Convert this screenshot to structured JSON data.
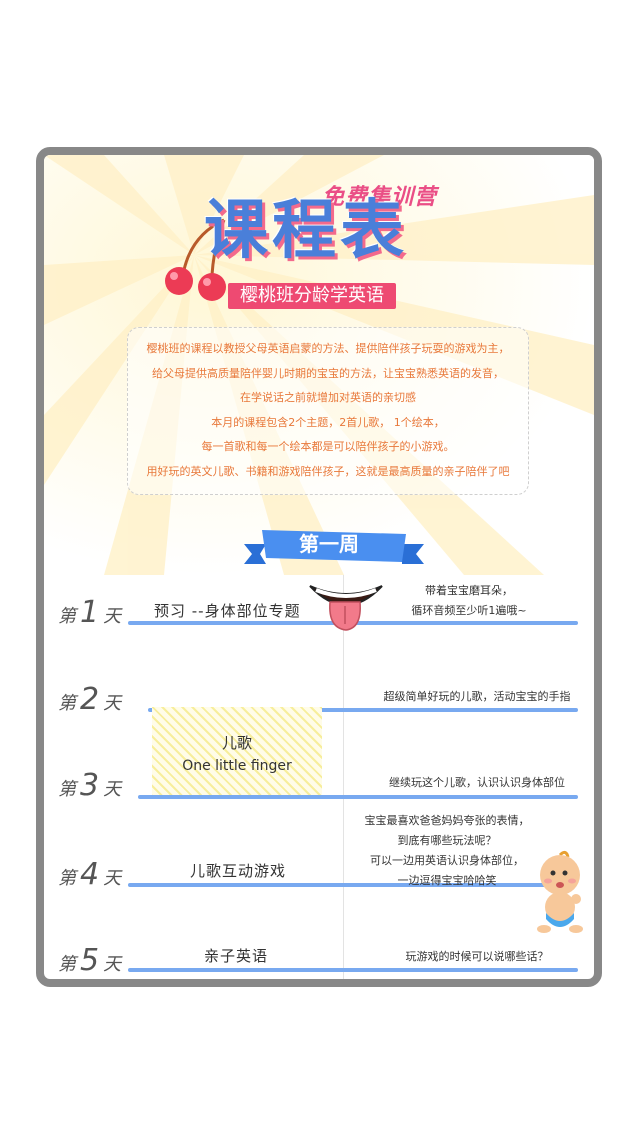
{
  "header": {
    "subtitle": "免费集训营",
    "title": "课程表",
    "ribbon": "樱桃班分龄学英语"
  },
  "intro": {
    "lines": [
      "樱桃班的课程以教授父母英语启蒙的方法、提供陪伴孩子玩耍的游戏为主，",
      "给父母提供高质量陪伴婴儿时期的宝宝的方法，让宝宝熟悉英语的发音，",
      "在学说话之前就增加对英语的亲切感",
      "本月的课程包含2个主题，2首儿歌， 1个绘本，",
      "每一首歌和每一个绘本都是可以陪伴孩子的小游戏。",
      "用好玩的英文儿歌、书籍和游戏陪伴孩子，这就是最高质量的亲子陪伴了吧"
    ]
  },
  "week": {
    "label": "第一周"
  },
  "days": [
    {
      "prefix": "第",
      "num": "1",
      "suffix": "天",
      "topic": "预习 --身体部位专题",
      "note": [
        "带着宝宝磨耳朵，",
        "循环音频至少听1遍哦~"
      ]
    },
    {
      "prefix": "第",
      "num": "2",
      "suffix": "天",
      "topic": "",
      "note": [
        "超级简单好玩的儿歌，活动宝宝的手指"
      ]
    },
    {
      "prefix": "第",
      "num": "3",
      "suffix": "天",
      "topic": "",
      "note": [
        "继续玩这个儿歌，认识认识身体部位"
      ]
    },
    {
      "prefix": "第",
      "num": "4",
      "suffix": "天",
      "topic": "儿歌互动游戏",
      "note": [
        "宝宝最喜欢爸爸妈妈夸张的表情，",
        "到底有哪些玩法呢？",
        "可以一边用英语认识身体部位，",
        "一边逗得宝宝哈哈笑"
      ]
    },
    {
      "prefix": "第",
      "num": "5",
      "suffix": "天",
      "topic": "亲子英语",
      "note": [
        "玩游戏的时候可以说哪些话？"
      ]
    }
  ],
  "song": {
    "title": "儿歌",
    "name": "One little finger"
  },
  "colors": {
    "accent_blue": "#78a9f0",
    "ribbon_pink": "#ee4a72",
    "intro_text": "#e8783a"
  },
  "icons": [
    "cherry-icon",
    "mouth-tongue-icon",
    "baby-icon"
  ]
}
